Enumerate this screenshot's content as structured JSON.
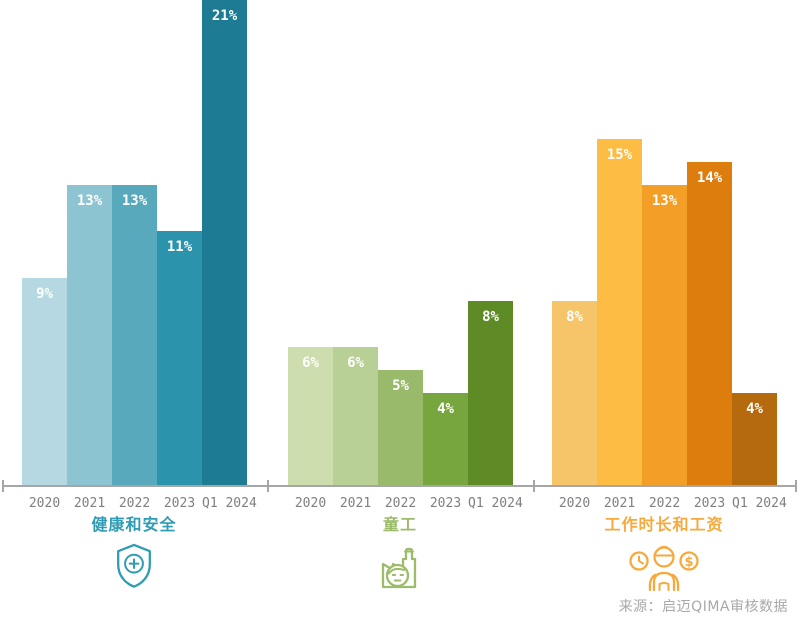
{
  "chart_data": {
    "type": "bar",
    "title": "",
    "categories": [
      "2020",
      "2021",
      "2022",
      "2023",
      "Q1 2024"
    ],
    "value_suffix": "%",
    "ylim": [
      0,
      21
    ],
    "grid": false,
    "legend_position": "none",
    "groups": [
      {
        "key": "health-safety",
        "label": "健康和安全",
        "icon": "shield-plus-icon",
        "label_color": "#2f9cb4",
        "bar_colors": [
          "#b5d8e2",
          "#8cc4d2",
          "#59a9bd",
          "#2b93ab",
          "#1d7b93"
        ],
        "values": [
          9,
          13,
          13,
          11,
          21
        ]
      },
      {
        "key": "child-labor",
        "label": "童工",
        "icon": "factory-child-worker-icon",
        "label_color": "#9cbb6b",
        "bar_colors": [
          "#cdddae",
          "#b8cf95",
          "#99ba6b",
          "#77a53e",
          "#5e8b26"
        ],
        "values": [
          6,
          6,
          5,
          4,
          8
        ]
      },
      {
        "key": "hours-wages",
        "label": "工作时长和工资",
        "icon": "worker-clock-dollar-icon",
        "label_color": "#f6a93d",
        "bar_colors": [
          "#f6c569",
          "#fdbd45",
          "#f29e27",
          "#dd7d0e",
          "#b56a0e"
        ],
        "values": [
          8,
          15,
          13,
          14,
          4
        ]
      }
    ],
    "source": "来源：启迈QIMA审核数据"
  },
  "colors": {
    "axis": "#a6a6a6",
    "tick_label": "#7f7f7f",
    "value_label": "#ffffff",
    "source_text": "#a8a8a8",
    "background": "#ffffff"
  }
}
